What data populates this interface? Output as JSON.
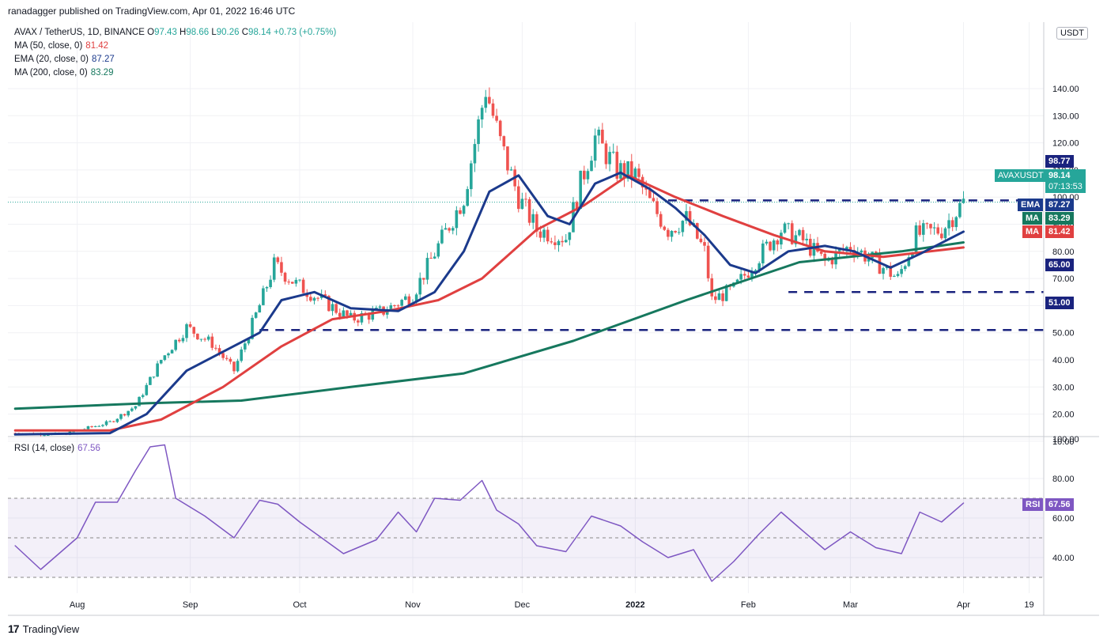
{
  "header": {
    "published": "ranadagger published on TradingView.com, Apr 01, 2022 16:46 UTC"
  },
  "symbol": {
    "name": "AVAX / TetherUS, 1D, BINANCE",
    "o_label": "O",
    "o": "97.43",
    "h_label": "H",
    "h": "98.66",
    "l_label": "L",
    "l": "90.26",
    "c_label": "C",
    "c": "98.14",
    "change": "+0.73 (+0.75%)"
  },
  "indicators": [
    {
      "label": "MA (50, close, 0)",
      "value": "81.42",
      "color": "#e04040"
    },
    {
      "label": "EMA (20, close, 0)",
      "value": "87.27",
      "color": "#1b3a8c"
    },
    {
      "label": "MA (200, close, 0)",
      "value": "83.29",
      "color": "#16785e"
    }
  ],
  "rsi_label": {
    "label": "RSI (14, close)",
    "value": "67.56",
    "color": "#7e57c2"
  },
  "currency": "USDT",
  "footer": {
    "logo": "17",
    "brand": "TradingView"
  },
  "price_tags": {
    "resistance": "98.77",
    "last_symbol": "AVAXUSDT",
    "last_price": "98.14",
    "countdown": "07:13:53",
    "ema_label": "EMA",
    "ema_value": "87.27",
    "ma200_label": "MA",
    "ma200_value": "83.29",
    "ma50_label": "MA",
    "ma50_value": "81.42",
    "support1": "65.00",
    "support2": "51.00",
    "rsi_label": "RSI",
    "rsi_value": "67.56"
  },
  "colors": {
    "ema": "#1b3a8c",
    "ma50": "#e04040",
    "ma200": "#16785e",
    "up": "#26a69a",
    "down": "#ef5350",
    "rsi": "#7e57c2",
    "level": "#1a237e"
  },
  "chart_data": [
    {
      "type": "candlestick",
      "title": "AVAX / TetherUS, 1D, BINANCE",
      "y_axis_ticks": [
        "140.00",
        "130.00",
        "120.00",
        "110.00",
        "100.00",
        "90.00",
        "80.00",
        "70.00",
        "60.00",
        "50.00",
        "40.00",
        "30.00",
        "20.00",
        "10.00"
      ],
      "x_axis_ticks": [
        "Aug",
        "Sep",
        "Oct",
        "Nov",
        "Dec",
        "2022",
        "Feb",
        "Mar",
        "Apr",
        "19"
      ],
      "levels": [
        98.77,
        65.0,
        51.0
      ],
      "last_values": {
        "close": 98.14,
        "ema20": 87.27,
        "ma200": 83.29,
        "ma50": 81.42
      },
      "price_path": [
        {
          "date": "2021-07-15",
          "close": 13
        },
        {
          "date": "2021-07-28",
          "close": 12.5
        },
        {
          "date": "2021-08-10",
          "close": 17
        },
        {
          "date": "2021-08-17",
          "close": 23
        },
        {
          "date": "2021-08-24",
          "close": 40
        },
        {
          "date": "2021-08-31",
          "close": 52
        },
        {
          "date": "2021-09-07",
          "close": 46
        },
        {
          "date": "2021-09-13",
          "close": 36
        },
        {
          "date": "2021-09-20",
          "close": 60
        },
        {
          "date": "2021-09-24",
          "close": 75
        },
        {
          "date": "2021-09-30",
          "close": 68
        },
        {
          "date": "2021-10-07",
          "close": 62
        },
        {
          "date": "2021-10-15",
          "close": 55
        },
        {
          "date": "2021-10-24",
          "close": 58
        },
        {
          "date": "2021-11-01",
          "close": 64
        },
        {
          "date": "2021-11-08",
          "close": 82
        },
        {
          "date": "2021-11-15",
          "close": 100
        },
        {
          "date": "2021-11-21",
          "close": 140
        },
        {
          "date": "2021-11-25",
          "close": 120
        },
        {
          "date": "2021-11-30",
          "close": 100
        },
        {
          "date": "2021-12-05",
          "close": 88
        },
        {
          "date": "2021-12-13",
          "close": 85
        },
        {
          "date": "2021-12-17",
          "close": 105
        },
        {
          "date": "2021-12-21",
          "close": 122
        },
        {
          "date": "2021-12-27",
          "close": 110
        },
        {
          "date": "2022-01-01",
          "close": 108
        },
        {
          "date": "2022-01-05",
          "close": 98
        },
        {
          "date": "2022-01-10",
          "close": 88
        },
        {
          "date": "2022-01-15",
          "close": 92
        },
        {
          "date": "2022-01-20",
          "close": 80
        },
        {
          "date": "2022-01-22",
          "close": 62
        },
        {
          "date": "2022-01-28",
          "close": 66
        },
        {
          "date": "2022-02-05",
          "close": 80
        },
        {
          "date": "2022-02-10",
          "close": 88
        },
        {
          "date": "2022-02-16",
          "close": 84
        },
        {
          "date": "2022-02-22",
          "close": 76
        },
        {
          "date": "2022-03-01",
          "close": 82
        },
        {
          "date": "2022-03-08",
          "close": 76
        },
        {
          "date": "2022-03-14",
          "close": 70
        },
        {
          "date": "2022-03-19",
          "close": 86
        },
        {
          "date": "2022-03-26",
          "close": 88
        },
        {
          "date": "2022-04-01",
          "close": 98.14
        }
      ],
      "ema20": [
        {
          "date": "2021-07-15",
          "value": 12.5
        },
        {
          "date": "2021-08-10",
          "value": 13
        },
        {
          "date": "2021-08-20",
          "value": 20
        },
        {
          "date": "2021-08-31",
          "value": 36
        },
        {
          "date": "2021-09-10",
          "value": 43
        },
        {
          "date": "2021-09-20",
          "value": 50
        },
        {
          "date": "2021-09-26",
          "value": 62
        },
        {
          "date": "2021-10-05",
          "value": 65
        },
        {
          "date": "2021-10-15",
          "value": 59
        },
        {
          "date": "2021-10-28",
          "value": 58
        },
        {
          "date": "2021-11-07",
          "value": 65
        },
        {
          "date": "2021-11-15",
          "value": 80
        },
        {
          "date": "2021-11-22",
          "value": 102
        },
        {
          "date": "2021-11-30",
          "value": 108
        },
        {
          "date": "2021-12-08",
          "value": 93
        },
        {
          "date": "2021-12-14",
          "value": 90
        },
        {
          "date": "2021-12-21",
          "value": 105
        },
        {
          "date": "2021-12-28",
          "value": 109
        },
        {
          "date": "2022-01-05",
          "value": 103
        },
        {
          "date": "2022-01-12",
          "value": 96
        },
        {
          "date": "2022-01-20",
          "value": 86
        },
        {
          "date": "2022-01-27",
          "value": 75
        },
        {
          "date": "2022-02-03",
          "value": 72
        },
        {
          "date": "2022-02-12",
          "value": 80
        },
        {
          "date": "2022-02-22",
          "value": 82
        },
        {
          "date": "2022-03-02",
          "value": 80
        },
        {
          "date": "2022-03-12",
          "value": 74
        },
        {
          "date": "2022-03-20",
          "value": 79
        },
        {
          "date": "2022-04-01",
          "value": 87.27
        }
      ],
      "ma50": [
        {
          "date": "2021-07-15",
          "value": 14
        },
        {
          "date": "2021-08-10",
          "value": 14
        },
        {
          "date": "2021-08-24",
          "value": 18
        },
        {
          "date": "2021-09-10",
          "value": 30
        },
        {
          "date": "2021-09-26",
          "value": 45
        },
        {
          "date": "2021-10-10",
          "value": 55
        },
        {
          "date": "2021-10-25",
          "value": 58
        },
        {
          "date": "2021-11-08",
          "value": 62
        },
        {
          "date": "2021-11-20",
          "value": 70
        },
        {
          "date": "2021-12-05",
          "value": 88
        },
        {
          "date": "2021-12-18",
          "value": 97
        },
        {
          "date": "2021-12-30",
          "value": 108
        },
        {
          "date": "2022-01-12",
          "value": 100
        },
        {
          "date": "2022-01-25",
          "value": 93
        },
        {
          "date": "2022-02-08",
          "value": 86
        },
        {
          "date": "2022-02-22",
          "value": 80
        },
        {
          "date": "2022-03-10",
          "value": 78
        },
        {
          "date": "2022-04-01",
          "value": 81.42
        }
      ],
      "ma200": [
        {
          "date": "2021-07-15",
          "value": 22
        },
        {
          "date": "2021-08-20",
          "value": 24
        },
        {
          "date": "2021-09-15",
          "value": 25
        },
        {
          "date": "2021-10-15",
          "value": 30
        },
        {
          "date": "2021-11-15",
          "value": 35
        },
        {
          "date": "2021-12-15",
          "value": 47
        },
        {
          "date": "2022-01-15",
          "value": 62
        },
        {
          "date": "2022-02-15",
          "value": 76
        },
        {
          "date": "2022-03-15",
          "value": 80
        },
        {
          "date": "2022-04-01",
          "value": 83.29
        }
      ]
    },
    {
      "type": "line",
      "title": "RSI (14, close)",
      "y_axis_ticks": [
        "100.00",
        "80.00",
        "60.00",
        "40.00"
      ],
      "band": [
        30,
        70
      ],
      "midline": 50,
      "series": [
        {
          "name": "RSI",
          "points": [
            {
              "date": "2021-07-15",
              "value": 46
            },
            {
              "date": "2021-07-22",
              "value": 34
            },
            {
              "date": "2021-08-01",
              "value": 50
            },
            {
              "date": "2021-08-06",
              "value": 68
            },
            {
              "date": "2021-08-12",
              "value": 68
            },
            {
              "date": "2021-08-17",
              "value": 84
            },
            {
              "date": "2021-08-21",
              "value": 96
            },
            {
              "date": "2021-08-25",
              "value": 97
            },
            {
              "date": "2021-08-28",
              "value": 70
            },
            {
              "date": "2021-09-05",
              "value": 61
            },
            {
              "date": "2021-09-13",
              "value": 50
            },
            {
              "date": "2021-09-20",
              "value": 69
            },
            {
              "date": "2021-09-25",
              "value": 67
            },
            {
              "date": "2021-10-01",
              "value": 58
            },
            {
              "date": "2021-10-13",
              "value": 42
            },
            {
              "date": "2021-10-22",
              "value": 49
            },
            {
              "date": "2021-10-28",
              "value": 63
            },
            {
              "date": "2021-11-02",
              "value": 53
            },
            {
              "date": "2021-11-07",
              "value": 70
            },
            {
              "date": "2021-11-14",
              "value": 69
            },
            {
              "date": "2021-11-20",
              "value": 79
            },
            {
              "date": "2021-11-24",
              "value": 64
            },
            {
              "date": "2021-11-30",
              "value": 57
            },
            {
              "date": "2021-12-05",
              "value": 46
            },
            {
              "date": "2021-12-13",
              "value": 43
            },
            {
              "date": "2021-12-20",
              "value": 61
            },
            {
              "date": "2021-12-28",
              "value": 56
            },
            {
              "date": "2022-01-03",
              "value": 48
            },
            {
              "date": "2022-01-10",
              "value": 40
            },
            {
              "date": "2022-01-17",
              "value": 44
            },
            {
              "date": "2022-01-22",
              "value": 28
            },
            {
              "date": "2022-01-28",
              "value": 38
            },
            {
              "date": "2022-02-04",
              "value": 52
            },
            {
              "date": "2022-02-10",
              "value": 63
            },
            {
              "date": "2022-02-15",
              "value": 55
            },
            {
              "date": "2022-02-22",
              "value": 44
            },
            {
              "date": "2022-03-01",
              "value": 53
            },
            {
              "date": "2022-03-08",
              "value": 45
            },
            {
              "date": "2022-03-15",
              "value": 42
            },
            {
              "date": "2022-03-20",
              "value": 63
            },
            {
              "date": "2022-03-26",
              "value": 58
            },
            {
              "date": "2022-04-01",
              "value": 67.56
            }
          ]
        }
      ]
    }
  ]
}
